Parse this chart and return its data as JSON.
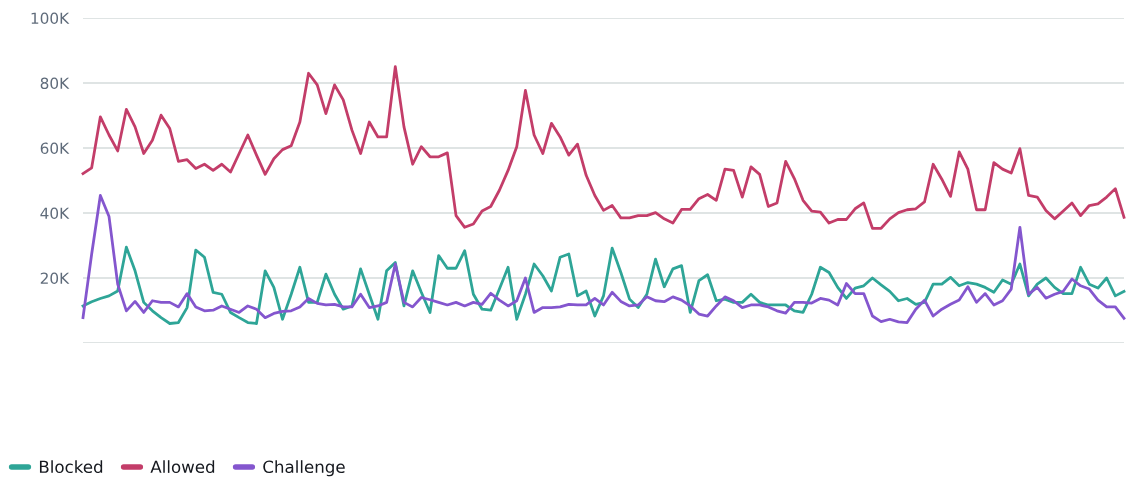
{
  "chart_data": {
    "type": "line",
    "categories": [
      null,
      null,
      null,
      null,
      null,
      null,
      null,
      null,
      null,
      null,
      null,
      null,
      null,
      null,
      null,
      null,
      null,
      null,
      null,
      null,
      null,
      null,
      null,
      null,
      null,
      null,
      null,
      null,
      null,
      null,
      null,
      null,
      null,
      null,
      null,
      null,
      null,
      null,
      null,
      null,
      null,
      null,
      null,
      null,
      null,
      null,
      null,
      null,
      null,
      null,
      null,
      null,
      null,
      null,
      null,
      null,
      null,
      null,
      null,
      null,
      null,
      null,
      null,
      null,
      null,
      null,
      null,
      null,
      null,
      null,
      null,
      null,
      null,
      null,
      null,
      null,
      null,
      null,
      null,
      null,
      null,
      null,
      null,
      null,
      null,
      null,
      null,
      null,
      null,
      null,
      null,
      null,
      null,
      null,
      null,
      null,
      null,
      null,
      null,
      null,
      null,
      null,
      null,
      null,
      null,
      null,
      null,
      null,
      null,
      null,
      null,
      null,
      null,
      null,
      null,
      null,
      null,
      null,
      null,
      null,
      null
    ],
    "ylim": [
      0,
      100000
    ],
    "yticks": [
      {
        "value": 0,
        "label": null
      },
      {
        "value": 20000,
        "label": "20K"
      },
      {
        "value": 40000,
        "label": "40K"
      },
      {
        "value": 60000,
        "label": "60K"
      },
      {
        "value": 80000,
        "label": "80K"
      },
      {
        "value": 100000,
        "label": "100K"
      }
    ],
    "grid": "y",
    "legend": "bottom left",
    "tick_labels": "y",
    "marker": "none",
    "line_style": "solid",
    "series": [
      {
        "name": "Blocked",
        "color": "#2ea597",
        "values": [
          11400,
          12700,
          13700,
          14500,
          16000,
          29500,
          22200,
          12500,
          9900,
          7800,
          6000,
          6300,
          10900,
          28600,
          26400,
          15600,
          15000,
          9400,
          7800,
          6300,
          6000,
          22200,
          17100,
          7300,
          15000,
          23300,
          12500,
          12500,
          21200,
          15000,
          10400,
          11400,
          22800,
          15000,
          7300,
          22200,
          24800,
          11400,
          22200,
          15600,
          9400,
          26900,
          23000,
          23000,
          28400,
          15000,
          10400,
          10100,
          16600,
          23300,
          7300,
          15000,
          24300,
          20700,
          16000,
          26400,
          27400,
          14500,
          16000,
          8300,
          14500,
          29200,
          21700,
          13500,
          10900,
          15000,
          25800,
          17300,
          22800,
          23800,
          9400,
          19200,
          21000,
          13000,
          13500,
          12500,
          12500,
          15000,
          12500,
          11700,
          11700,
          11700,
          9900,
          9400,
          15000,
          23300,
          21700,
          17100,
          13700,
          16900,
          17600,
          20000,
          17900,
          15900,
          13000,
          13700,
          11900,
          12500,
          18100,
          18100,
          20200,
          17600,
          18600,
          18100,
          17100,
          15600,
          19400,
          18100,
          24300,
          14500,
          18100,
          20000,
          17100,
          15200,
          15200,
          23300,
          18100,
          16900,
          20000,
          14500,
          15900
        ]
      },
      {
        "name": "Allowed",
        "color": "#c33d69",
        "values": [
          52100,
          53900,
          69600,
          64000,
          59100,
          71900,
          66500,
          58300,
          62400,
          70100,
          66000,
          55900,
          56400,
          53700,
          55000,
          53100,
          55000,
          52600,
          58300,
          64000,
          57800,
          51900,
          56700,
          59500,
          60700,
          68000,
          83000,
          79400,
          70600,
          79400,
          74800,
          65500,
          58300,
          68000,
          63400,
          63400,
          85000,
          66500,
          55000,
          60400,
          57300,
          57300,
          58500,
          39200,
          35600,
          36600,
          40600,
          42000,
          47000,
          53100,
          60400,
          77700,
          64000,
          58300,
          67600,
          63400,
          57800,
          61200,
          51600,
          45400,
          40800,
          42300,
          38500,
          38500,
          39200,
          39200,
          40100,
          38200,
          36900,
          41100,
          41100,
          44400,
          45700,
          43900,
          53500,
          53100,
          44900,
          54200,
          51900,
          42000,
          43100,
          55900,
          50600,
          43900,
          40600,
          40300,
          36900,
          38000,
          38000,
          41300,
          43100,
          35300,
          35300,
          38200,
          40100,
          41000,
          41300,
          43400,
          55000,
          50400,
          45100,
          58800,
          53500,
          41000,
          41000,
          55500,
          53500,
          52300,
          59800,
          45400,
          44900,
          40800,
          38200,
          40600,
          43100,
          39200,
          42300,
          42800,
          44900,
          47500,
          38700
        ]
      },
      {
        "name": "Challenge",
        "color": "#8456ce",
        "values": [
          7800,
          27400,
          45400,
          38900,
          18100,
          9900,
          12800,
          9400,
          13000,
          12500,
          12500,
          11100,
          15200,
          11100,
          9900,
          10100,
          11400,
          10400,
          9400,
          11400,
          10400,
          7800,
          9100,
          9700,
          9900,
          11100,
          13700,
          12200,
          11700,
          11900,
          11100,
          11100,
          15000,
          10900,
          11400,
          12500,
          24300,
          12500,
          11100,
          14000,
          13300,
          12500,
          11700,
          12500,
          11400,
          12500,
          11900,
          15300,
          13200,
          11400,
          13000,
          20000,
          9400,
          10900,
          10900,
          11100,
          11900,
          11700,
          11700,
          13700,
          11700,
          15600,
          12800,
          11400,
          11700,
          14200,
          13000,
          12700,
          14200,
          13200,
          11400,
          8900,
          8300,
          11400,
          14200,
          13000,
          10900,
          11700,
          11700,
          11100,
          9900,
          9200,
          12500,
          12500,
          12300,
          13700,
          13200,
          11700,
          18300,
          15200,
          15200,
          8300,
          6600,
          7300,
          6500,
          6300,
          10400,
          13200,
          8300,
          10400,
          11900,
          13200,
          17300,
          12500,
          15200,
          11700,
          13000,
          16600,
          35600,
          15000,
          17100,
          13800,
          15000,
          15900,
          19700,
          17600,
          16600,
          13200,
          11100,
          11100,
          7600
        ]
      }
    ]
  }
}
